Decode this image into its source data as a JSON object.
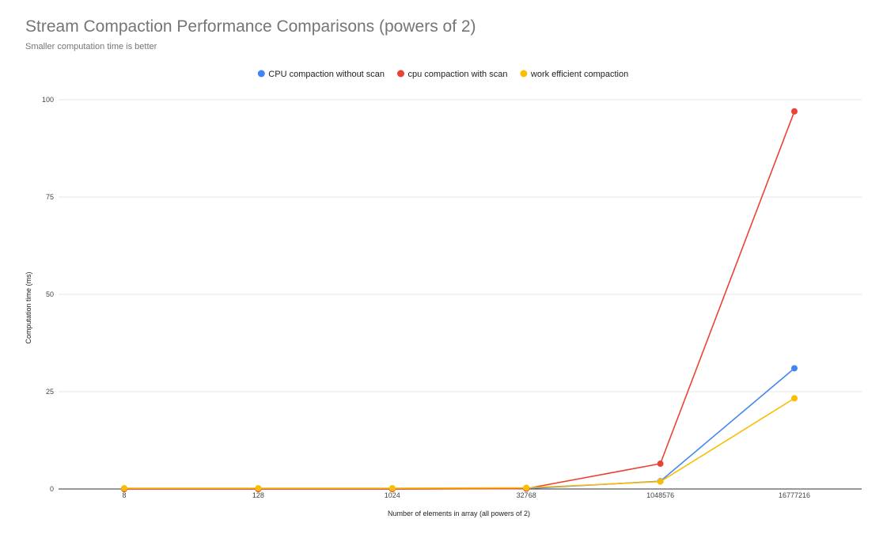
{
  "chart_data": {
    "type": "line",
    "title": "Stream Compaction Performance Comparisons (powers of 2)",
    "subtitle": "Smaller computation time is better",
    "xlabel": "Number of elements in array (all powers of 2)",
    "ylabel": "Computation time (ms)",
    "categories": [
      "8",
      "128",
      "1024",
      "32768",
      "1048576",
      "16777216"
    ],
    "ylim": [
      0,
      100
    ],
    "yticks": [
      "0",
      "25",
      "50",
      "75",
      "100"
    ],
    "grid": true,
    "legend_position": "top",
    "series": [
      {
        "name": "CPU compaction without scan",
        "color": "#4285f4",
        "values": [
          0.0,
          0.0,
          0.0,
          0.1,
          2.0,
          31.0
        ]
      },
      {
        "name": "cpu compaction with scan",
        "color": "#ea4335",
        "values": [
          0.0,
          0.0,
          0.0,
          0.1,
          6.5,
          97.0
        ]
      },
      {
        "name": "work efficient compaction",
        "color": "#fbbc04",
        "values": [
          0.2,
          0.2,
          0.2,
          0.3,
          1.9,
          23.3
        ]
      }
    ]
  }
}
